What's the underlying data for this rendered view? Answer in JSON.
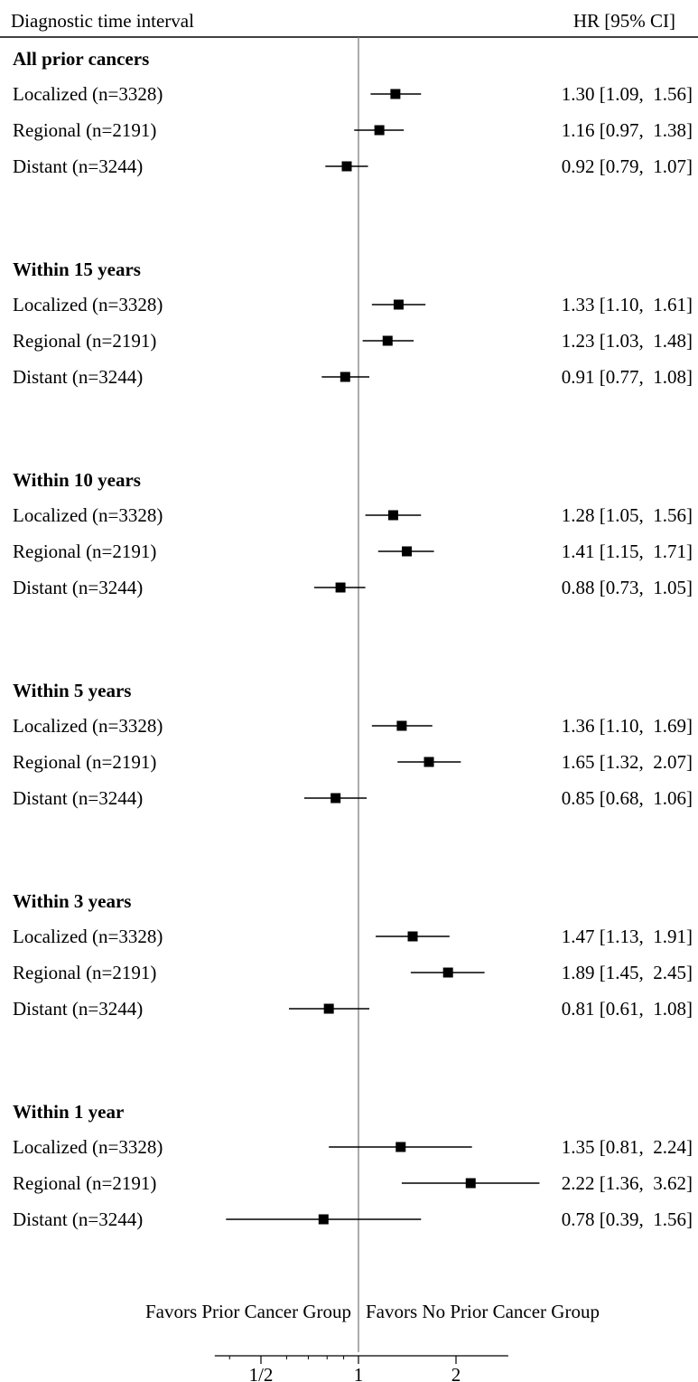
{
  "header": {
    "left": "Diagnostic time interval",
    "right": "HR [95% CI]"
  },
  "footer": {
    "favor_left": "Favors Prior Cancer Group",
    "favor_right": "Favors No Prior Cancer Group"
  },
  "chart_data": {
    "type": "forest",
    "x_scale": "log2",
    "xlim": [
      0.36,
      2.9
    ],
    "reference_line": 1,
    "x_ticks": [
      {
        "value": 0.5,
        "label": "1/2"
      },
      {
        "value": 1,
        "label": "1"
      },
      {
        "value": 2,
        "label": "2"
      }
    ],
    "groups": [
      {
        "title": "All prior cancers",
        "rows": [
          {
            "label": "Localized (n=3328)",
            "hr": 1.3,
            "lo": 1.09,
            "hi": 1.56,
            "text": "1.30 [1.09,  1.56]"
          },
          {
            "label": "Regional (n=2191)",
            "hr": 1.16,
            "lo": 0.97,
            "hi": 1.38,
            "text": "1.16 [0.97,  1.38]"
          },
          {
            "label": "Distant (n=3244)",
            "hr": 0.92,
            "lo": 0.79,
            "hi": 1.07,
            "text": "0.92 [0.79,  1.07]"
          }
        ]
      },
      {
        "title": "Within 15 years",
        "rows": [
          {
            "label": "Localized (n=3328)",
            "hr": 1.33,
            "lo": 1.1,
            "hi": 1.61,
            "text": "1.33 [1.10,  1.61]"
          },
          {
            "label": "Regional (n=2191)",
            "hr": 1.23,
            "lo": 1.03,
            "hi": 1.48,
            "text": "1.23 [1.03,  1.48]"
          },
          {
            "label": "Distant (n=3244)",
            "hr": 0.91,
            "lo": 0.77,
            "hi": 1.08,
            "text": "0.91 [0.77,  1.08]"
          }
        ]
      },
      {
        "title": "Within 10 years",
        "rows": [
          {
            "label": "Localized (n=3328)",
            "hr": 1.28,
            "lo": 1.05,
            "hi": 1.56,
            "text": "1.28 [1.05,  1.56]"
          },
          {
            "label": "Regional (n=2191)",
            "hr": 1.41,
            "lo": 1.15,
            "hi": 1.71,
            "text": "1.41 [1.15,  1.71]"
          },
          {
            "label": "Distant (n=3244)",
            "hr": 0.88,
            "lo": 0.73,
            "hi": 1.05,
            "text": "0.88 [0.73,  1.05]"
          }
        ]
      },
      {
        "title": "Within 5 years",
        "rows": [
          {
            "label": "Localized (n=3328)",
            "hr": 1.36,
            "lo": 1.1,
            "hi": 1.69,
            "text": "1.36 [1.10,  1.69]"
          },
          {
            "label": "Regional (n=2191)",
            "hr": 1.65,
            "lo": 1.32,
            "hi": 2.07,
            "text": "1.65 [1.32,  2.07]"
          },
          {
            "label": "Distant (n=3244)",
            "hr": 0.85,
            "lo": 0.68,
            "hi": 1.06,
            "text": "0.85 [0.68,  1.06]"
          }
        ]
      },
      {
        "title": "Within 3 years",
        "rows": [
          {
            "label": "Localized (n=3328)",
            "hr": 1.47,
            "lo": 1.13,
            "hi": 1.91,
            "text": "1.47 [1.13,  1.91]"
          },
          {
            "label": "Regional (n=2191)",
            "hr": 1.89,
            "lo": 1.45,
            "hi": 2.45,
            "text": "1.89 [1.45,  2.45]"
          },
          {
            "label": "Distant (n=3244)",
            "hr": 0.81,
            "lo": 0.61,
            "hi": 1.08,
            "text": "0.81 [0.61,  1.08]"
          }
        ]
      },
      {
        "title": "Within 1 year",
        "rows": [
          {
            "label": "Localized (n=3328)",
            "hr": 1.35,
            "lo": 0.81,
            "hi": 2.24,
            "text": "1.35 [0.81,  2.24]"
          },
          {
            "label": "Regional (n=2191)",
            "hr": 2.22,
            "lo": 1.36,
            "hi": 3.62,
            "text": "2.22 [1.36,  3.62]"
          },
          {
            "label": "Distant (n=3244)",
            "hr": 0.78,
            "lo": 0.39,
            "hi": 1.56,
            "text": "0.78 [0.39,  1.56]"
          }
        ]
      }
    ]
  }
}
